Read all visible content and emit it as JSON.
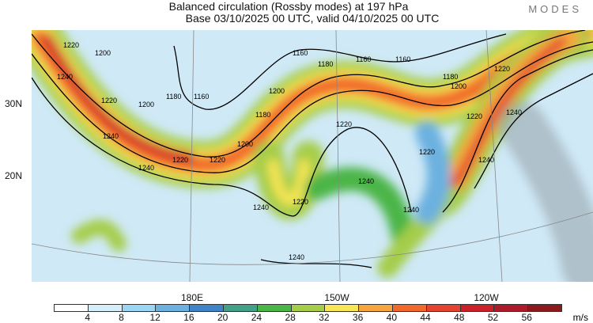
{
  "title": "Balanced circulation (Rossby modes) at 197 hPa",
  "subtitle": "Base 03/10/2025 00 UTC, valid 04/10/2025 00 UTC",
  "logo": "MODES",
  "lat_labels": [
    "30N",
    "20N"
  ],
  "lon_labels": [
    "180E",
    "150W",
    "120W"
  ],
  "colorbar": {
    "ticks": [
      "4",
      "8",
      "12",
      "16",
      "20",
      "24",
      "28",
      "32",
      "36",
      "40",
      "44",
      "48",
      "52",
      "56"
    ],
    "unit": "m/s",
    "colors": [
      "#ffffff",
      "#d4eefa",
      "#9dd6f5",
      "#6cb1e0",
      "#3f84c6",
      "#44a088",
      "#4cb547",
      "#a5cd4a",
      "#f8e654",
      "#f6a63c",
      "#f26a2b",
      "#e3432f",
      "#cd1f2a",
      "#ad1b2b",
      "#8a1a1c"
    ]
  },
  "contour_labels": [
    "1220",
    "1200",
    "1240",
    "1220",
    "1200",
    "1180",
    "1160",
    "1240",
    "1200",
    "1180",
    "1200",
    "1160",
    "1180",
    "1160",
    "1220",
    "1220",
    "1220",
    "1240",
    "1220",
    "1240",
    "1240",
    "1240",
    "1240",
    "1220",
    "1220",
    "1240",
    "1240",
    "1180",
    "1200",
    "1220",
    "1160"
  ]
}
